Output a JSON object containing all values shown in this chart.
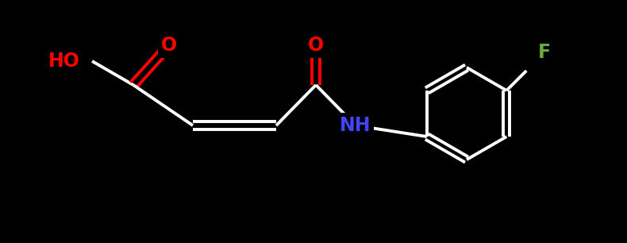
{
  "bg_color": "#000000",
  "bond_color": "#ffffff",
  "bond_width": 2.5,
  "atom_colors": {
    "O": "#ff0000",
    "N": "#4444ff",
    "F": "#6aaa3a",
    "C": "#ffffff",
    "H": "#ffffff"
  },
  "font_size": 16,
  "font_weight": "bold"
}
